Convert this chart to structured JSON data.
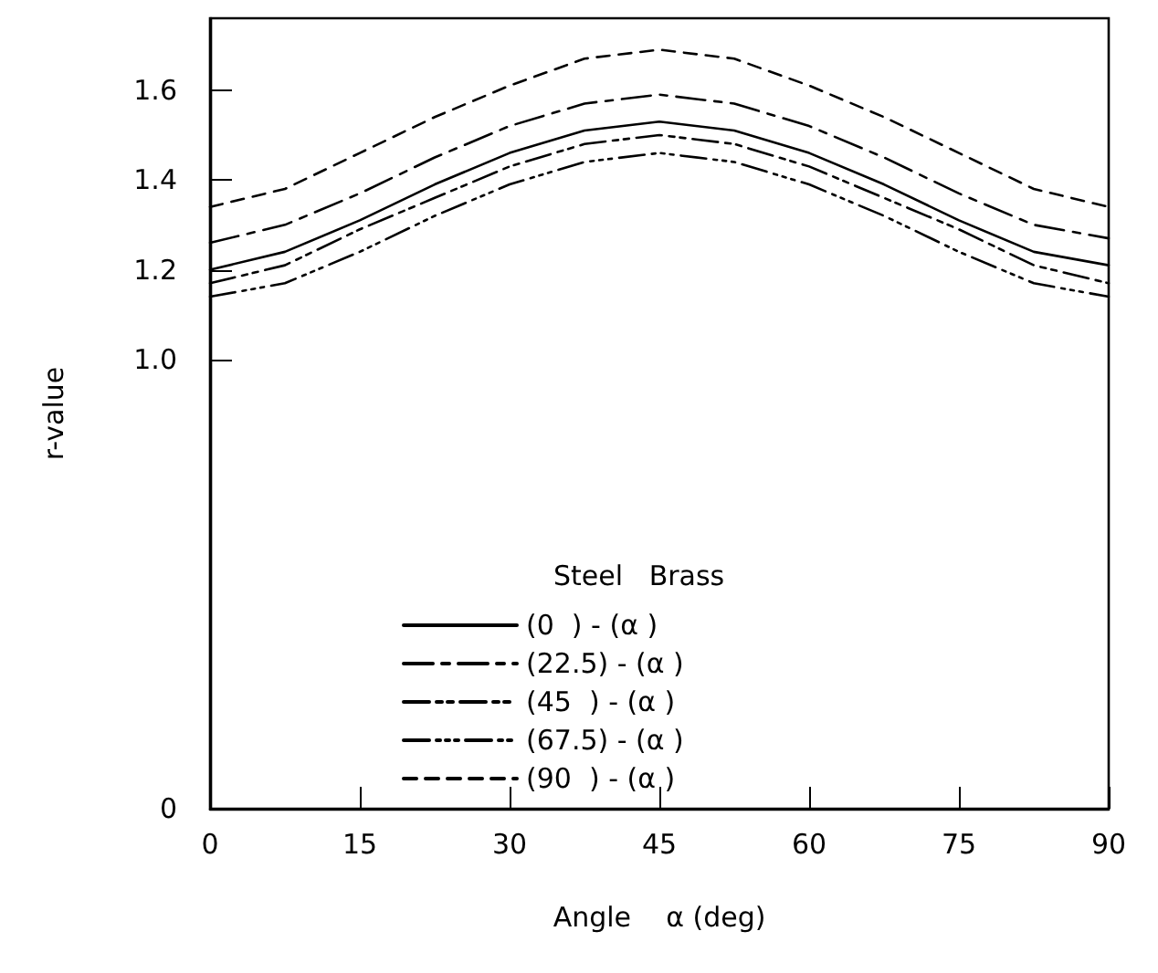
{
  "chart_data": {
    "type": "line",
    "xlabel": "Angle    α (deg)",
    "ylabel": "r-value",
    "legend_title": "Steel   Brass",
    "x": [
      0,
      7.5,
      15,
      22.5,
      30,
      37.5,
      45,
      52.5,
      60,
      67.5,
      75,
      82.5,
      90
    ],
    "series": [
      {
        "name": "(0  ) - (α )",
        "color": "#000000",
        "line_style": "solid",
        "values": [
          1.2,
          1.24,
          1.31,
          1.39,
          1.46,
          1.51,
          1.53,
          1.51,
          1.46,
          1.39,
          1.31,
          1.24,
          1.21
        ]
      },
      {
        "name": "(22.5) - (α )",
        "color": "#000000",
        "line_style": "dashed",
        "values": [
          1.26,
          1.3,
          1.37,
          1.45,
          1.52,
          1.57,
          1.59,
          1.57,
          1.52,
          1.45,
          1.37,
          1.3,
          1.27
        ]
      },
      {
        "name": "(45  ) - (α )",
        "color": "#000000",
        "line_style": "dashed",
        "values": [
          1.17,
          1.21,
          1.29,
          1.36,
          1.43,
          1.48,
          1.5,
          1.48,
          1.43,
          1.36,
          1.29,
          1.21,
          1.17
        ]
      },
      {
        "name": "(67.5) - (α )",
        "color": "#000000",
        "line_style": "dashed",
        "values": [
          1.14,
          1.17,
          1.24,
          1.32,
          1.39,
          1.44,
          1.46,
          1.44,
          1.39,
          1.32,
          1.24,
          1.17,
          1.14
        ]
      },
      {
        "name": "(90  ) - (α )",
        "color": "#000000",
        "line_style": "dashed",
        "values": [
          1.34,
          1.38,
          1.46,
          1.54,
          1.61,
          1.67,
          1.69,
          1.67,
          1.61,
          1.54,
          1.46,
          1.38,
          1.34
        ]
      }
    ],
    "xlim": [
      0,
      90
    ],
    "xticks": [
      0,
      15,
      30,
      45,
      60,
      75,
      90
    ],
    "ylim": [
      0,
      1.76
    ],
    "yticks": [
      0,
      {
        "value": 1,
        "label": "1.0"
      },
      1.2,
      1.4,
      1.6
    ],
    "grid": false,
    "legend": "bottom",
    "marker": "none"
  }
}
